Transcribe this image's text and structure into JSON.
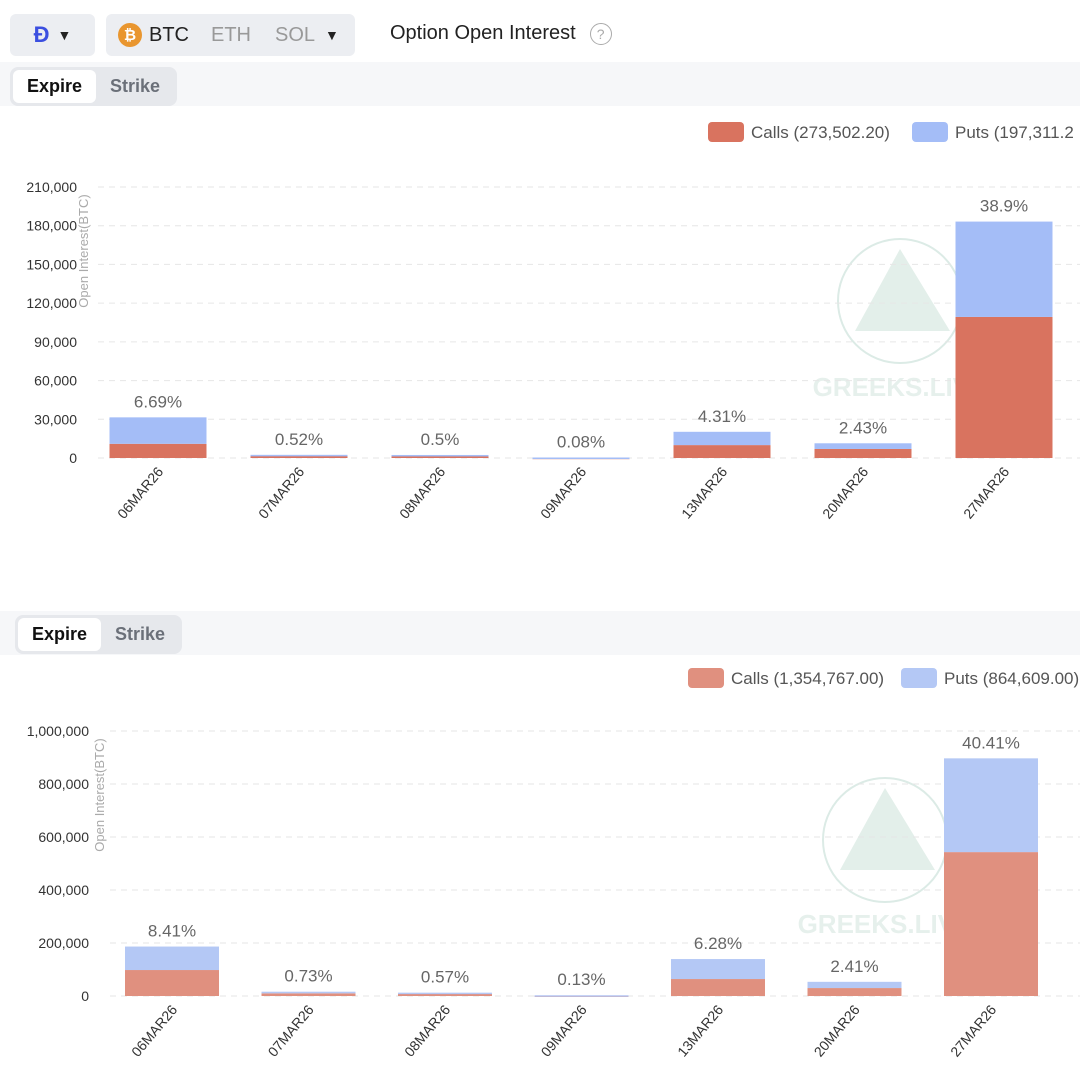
{
  "toolbar": {
    "exchange_icon": "deribit-logo-icon",
    "coins": [
      "BTC",
      "ETH",
      "SOL"
    ],
    "selected_coin": "BTC",
    "title": "Option Open Interest",
    "help_icon": "question-circle-icon"
  },
  "panels": [
    {
      "tabs": [
        "Expire",
        "Strike"
      ],
      "active_tab": "Expire"
    },
    {
      "tabs": [
        "Expire",
        "Strike"
      ],
      "active_tab": "Expire"
    }
  ],
  "watermark": "GREEKS.LIVE",
  "chart_data": [
    {
      "type": "bar",
      "stacked": true,
      "ylabel": "Open Interest(BTC)",
      "ylim": [
        0,
        210000
      ],
      "yticks": [
        "0",
        "30,000",
        "60,000",
        "90,000",
        "120,000",
        "150,000",
        "180,000",
        "210,000"
      ],
      "categories": [
        "06MAR26",
        "07MAR26",
        "08MAR26",
        "09MAR26",
        "13MAR26",
        "20MAR26",
        "27MAR26"
      ],
      "series": [
        {
          "name": "Calls (273,502.20)",
          "color": "#d9735f",
          "values": [
            11000,
            1500,
            1500,
            250,
            10000,
            7000,
            109300
          ]
        },
        {
          "name": "Puts (197,311.2",
          "color": "#a4bdf7",
          "values": [
            20500,
            950,
            850,
            130,
            10300,
            4400,
            73900
          ]
        }
      ],
      "labels": [
        "6.69%",
        "0.52%",
        "0.5%",
        "0.08%",
        "4.31%",
        "2.43%",
        "38.9%"
      ],
      "grid": true,
      "legend": "top-right"
    },
    {
      "type": "bar",
      "stacked": true,
      "ylabel": "Open Interest(BTC)",
      "ylim": [
        0,
        1000000
      ],
      "yticks": [
        "0",
        "200,000",
        "400,000",
        "600,000",
        "800,000",
        "1,000,000"
      ],
      "categories": [
        "06MAR26",
        "07MAR26",
        "08MAR26",
        "09MAR26",
        "13MAR26",
        "20MAR26",
        "27MAR26"
      ],
      "series": [
        {
          "name": "Calls (1,354,767.00)",
          "color": "#e0907f",
          "values": [
            98000,
            10000,
            8000,
            2000,
            64000,
            30000,
            543000
          ]
        },
        {
          "name": "Puts (864,609.00)",
          "color": "#b4c8f5",
          "values": [
            88600,
            6200,
            4600,
            900,
            75400,
            23500,
            353800
          ]
        }
      ],
      "labels": [
        "8.41%",
        "0.73%",
        "0.57%",
        "0.13%",
        "6.28%",
        "2.41%",
        "40.41%"
      ],
      "grid": true,
      "legend": "top-right"
    }
  ]
}
